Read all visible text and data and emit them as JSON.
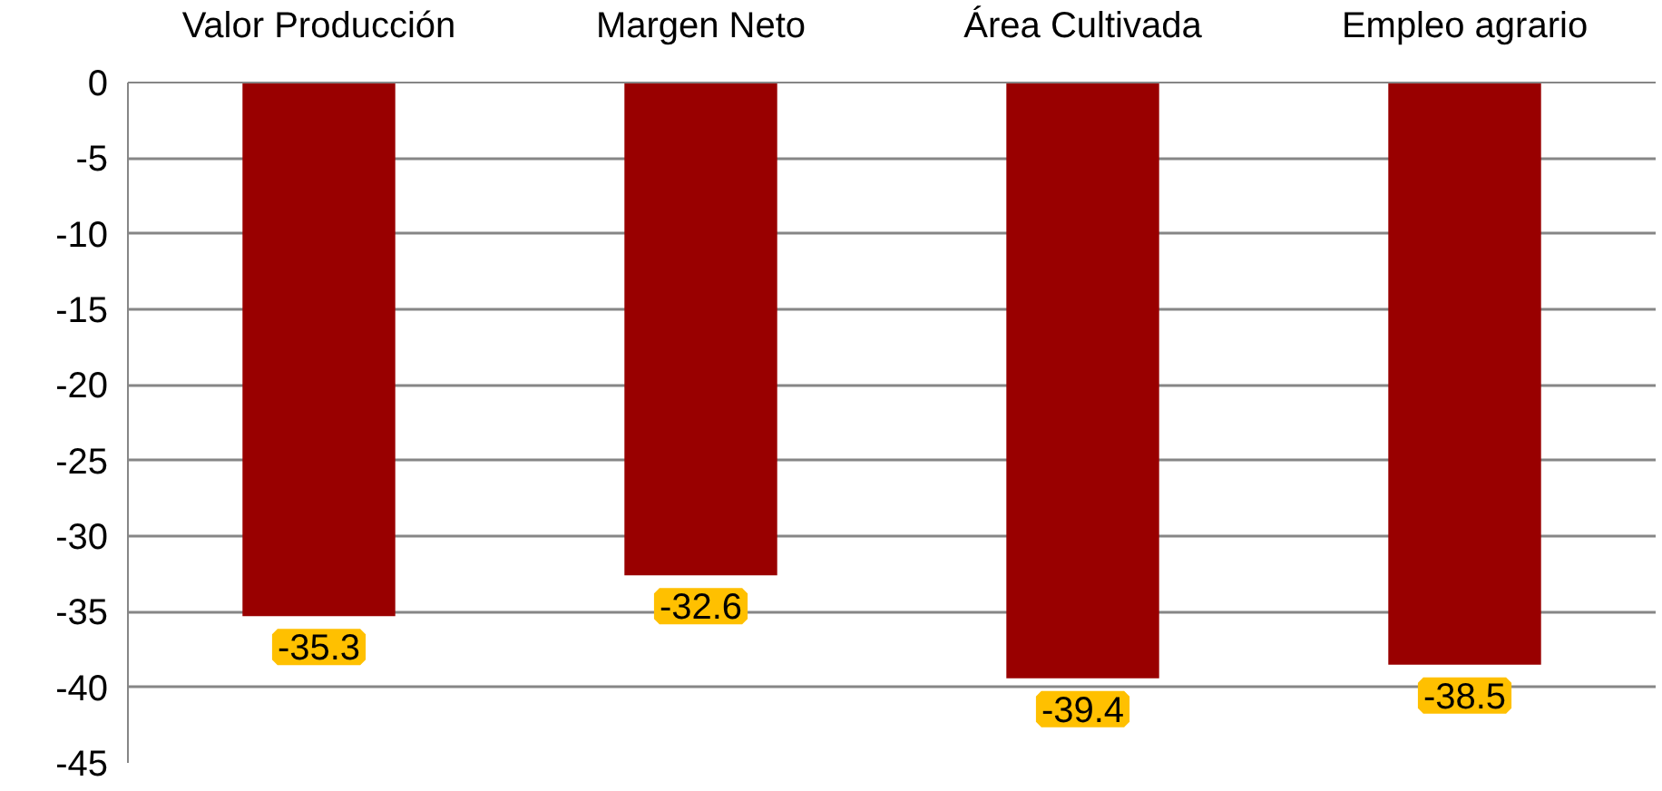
{
  "chart_data": {
    "type": "bar",
    "categories": [
      "Valor Producción",
      "Margen Neto",
      "Área Cultivada",
      "Empleo agrario"
    ],
    "values": [
      -35.3,
      -32.6,
      -39.4,
      -38.5
    ],
    "color": "#990000",
    "ylim": [
      -45,
      0
    ],
    "yticks": [
      0,
      -5,
      -10,
      -15,
      -20,
      -25,
      -30,
      -35,
      -40,
      -45
    ],
    "grid": "y",
    "data_labels": true
  }
}
